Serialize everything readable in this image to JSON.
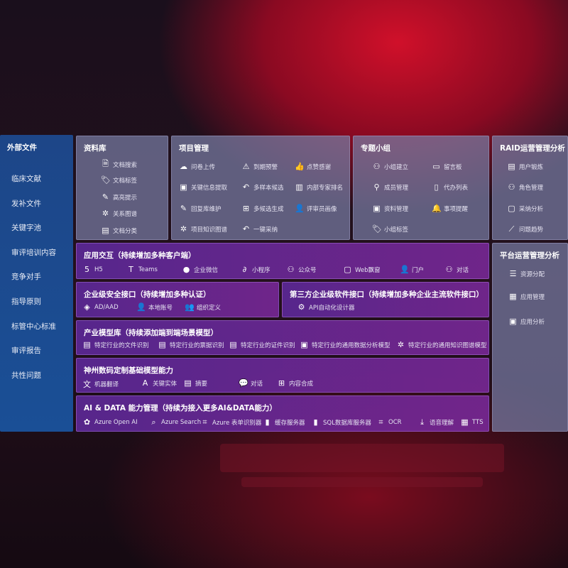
{
  "left": {
    "title": "外部文件",
    "items": [
      "临床文献",
      "发补文件",
      "关键字池",
      "审评培训内容",
      "竞争对手",
      "指导原则",
      "标管中心标准",
      "审评报告",
      "共性问题"
    ]
  },
  "library": {
    "title": "资料库",
    "items": [
      {
        "label": "文档搜索",
        "icon": "doc-search-icon"
      },
      {
        "label": "文档标签",
        "icon": "tag-icon"
      },
      {
        "label": "高亮提示",
        "icon": "pen-icon"
      },
      {
        "label": "关系图谱",
        "icon": "graph-icon"
      },
      {
        "label": "文档分类",
        "icon": "doc-classify-icon"
      }
    ]
  },
  "project": {
    "title": "项目管理",
    "items": [
      {
        "label": "问卷上传",
        "icon": "cloud-upload-icon"
      },
      {
        "label": "到期预警",
        "icon": "alarm-icon"
      },
      {
        "label": "点赞感谢",
        "icon": "thumbs-up-icon"
      },
      {
        "label": "关键信息提取",
        "icon": "extract-icon"
      },
      {
        "label": "多样本候选",
        "icon": "reply-icon"
      },
      {
        "label": "内部专家排名",
        "icon": "ranking-icon"
      },
      {
        "label": "回复库维护",
        "icon": "edit-icon"
      },
      {
        "label": "多候选生成",
        "icon": "puzzle-icon"
      },
      {
        "label": "评审员画像",
        "icon": "user-icon"
      },
      {
        "label": "项目知识图谱",
        "icon": "graph-icon"
      },
      {
        "label": "一键采纳",
        "icon": "reply-icon"
      }
    ]
  },
  "group": {
    "title": "专题小组",
    "items": [
      {
        "label": "小组建立",
        "icon": "group-icon"
      },
      {
        "label": "留言板",
        "icon": "bbs-icon"
      },
      {
        "label": "成员管理",
        "icon": "member-icon"
      },
      {
        "label": "代办列表",
        "icon": "clipboard-icon"
      },
      {
        "label": "资料管理",
        "icon": "folder-icon"
      },
      {
        "label": "事项提醒",
        "icon": "bell-icon"
      },
      {
        "label": "小组标签",
        "icon": "tag-icon"
      }
    ]
  },
  "raid": {
    "title": "RAID运营管理分析",
    "items": [
      {
        "label": "用户锻炼",
        "icon": "id-card-icon"
      },
      {
        "label": "角色管理",
        "icon": "users-icon"
      },
      {
        "label": "采纳分析",
        "icon": "qa-icon"
      },
      {
        "label": "问题趋势",
        "icon": "trend-icon"
      }
    ]
  },
  "platform": {
    "title": "平台运营管理分析",
    "items": [
      {
        "label": "资源分配",
        "icon": "list-check-icon"
      },
      {
        "label": "应用管理",
        "icon": "apps-icon"
      },
      {
        "label": "应用分析",
        "icon": "analysis-icon"
      }
    ]
  },
  "interaction": {
    "title": "应用交互（持续增加多种客户端）",
    "items": [
      {
        "label": "H5",
        "icon": "html5-icon"
      },
      {
        "label": "Teams",
        "icon": "teams-icon"
      },
      {
        "label": "企业微信",
        "icon": "wecom-icon"
      },
      {
        "label": "小程序",
        "icon": "miniprogram-icon"
      },
      {
        "label": "公众号",
        "icon": "official-account-icon"
      },
      {
        "label": "Web飘窗",
        "icon": "window-icon"
      },
      {
        "label": "门户",
        "icon": "portal-icon"
      },
      {
        "label": "对话",
        "icon": "chat-users-icon"
      }
    ]
  },
  "security": {
    "title": "企业级安全接口（持续增加多种认证）",
    "items": [
      {
        "label": "AD/AAD",
        "icon": "ad-icon"
      },
      {
        "label": "本地账号",
        "icon": "account-icon"
      },
      {
        "label": "组织定义",
        "icon": "org-icon"
      }
    ]
  },
  "thirdparty": {
    "title": "第三方企业级软件接口（持续增加多种企业主流软件接口）",
    "items": [
      {
        "label": "API自动化设计器",
        "icon": "gear-icon"
      }
    ]
  },
  "industry": {
    "title": "产业模型库（持续添加端到端场景模型）",
    "items": [
      {
        "label": "特定行业的文件识别",
        "icon": "file-icon"
      },
      {
        "label": "特定行业的票据识别",
        "icon": "receipt-icon"
      },
      {
        "label": "特定行业的证件识别",
        "icon": "id-card-icon"
      },
      {
        "label": "特定行业的通用数据分析模型",
        "icon": "chart-icon"
      },
      {
        "label": "特定行业的通用知识图谱模型",
        "icon": "graph-icon"
      }
    ]
  },
  "base": {
    "title": "神州数码定制基础模型能力",
    "items": [
      {
        "label": "机器翻译",
        "icon": "translate-icon"
      },
      {
        "label": "关键实体",
        "icon": "entity-icon"
      },
      {
        "label": "摘要",
        "icon": "summary-icon"
      },
      {
        "label": "对话",
        "icon": "chat-icon"
      },
      {
        "label": "内容合成",
        "icon": "puzzle-icon"
      }
    ]
  },
  "ai": {
    "title": "AI & DATA 能力管理（持续为接入更多AI&DATA能力）",
    "items": [
      {
        "label": "Azure Open AI",
        "icon": "openai-icon"
      },
      {
        "label": "Azure Search",
        "icon": "search-icon"
      },
      {
        "label": "Azure 表单识别器",
        "icon": "form-icon"
      },
      {
        "label": "缓存服务器",
        "icon": "cache-icon"
      },
      {
        "label": "SQL数据库服务器",
        "icon": "database-icon"
      },
      {
        "label": "OCR",
        "icon": "ocr-icon"
      },
      {
        "label": "语音理解",
        "icon": "speech-icon"
      },
      {
        "label": "TTS",
        "icon": "tts-icon"
      }
    ]
  }
}
